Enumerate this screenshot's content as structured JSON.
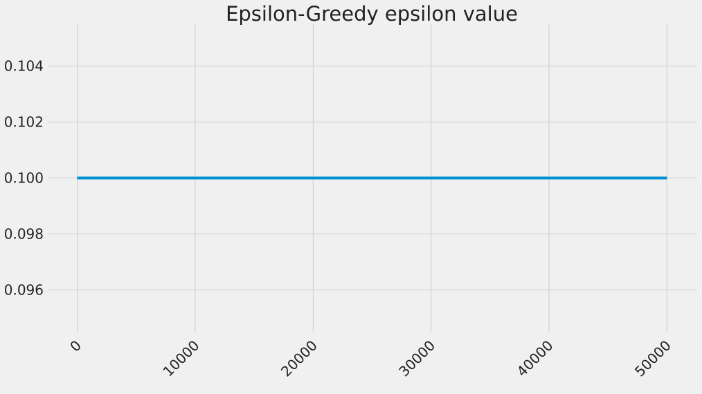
{
  "chart_data": {
    "type": "line",
    "title": "Epsilon-Greedy epsilon value",
    "xlabel": "",
    "ylabel": "",
    "xlim": [
      -2500,
      52500
    ],
    "ylim": [
      0.0945,
      0.1055
    ],
    "x_ticks": [
      0,
      10000,
      20000,
      30000,
      40000,
      50000
    ],
    "x_tick_labels": [
      "0",
      "10000",
      "20000",
      "30000",
      "40000",
      "50000"
    ],
    "y_ticks": [
      0.096,
      0.098,
      0.1,
      0.102,
      0.104
    ],
    "y_tick_labels": [
      "0.096",
      "0.098",
      "0.100",
      "0.102",
      "0.104"
    ],
    "grid": true,
    "series": [
      {
        "name": "epsilon",
        "color": "#008fd5",
        "x": [
          0,
          50000
        ],
        "y": [
          0.1,
          0.1
        ]
      }
    ]
  },
  "colors": {
    "background": "#f0f0f0",
    "grid": "#cbcbcb",
    "text": "#222222"
  }
}
